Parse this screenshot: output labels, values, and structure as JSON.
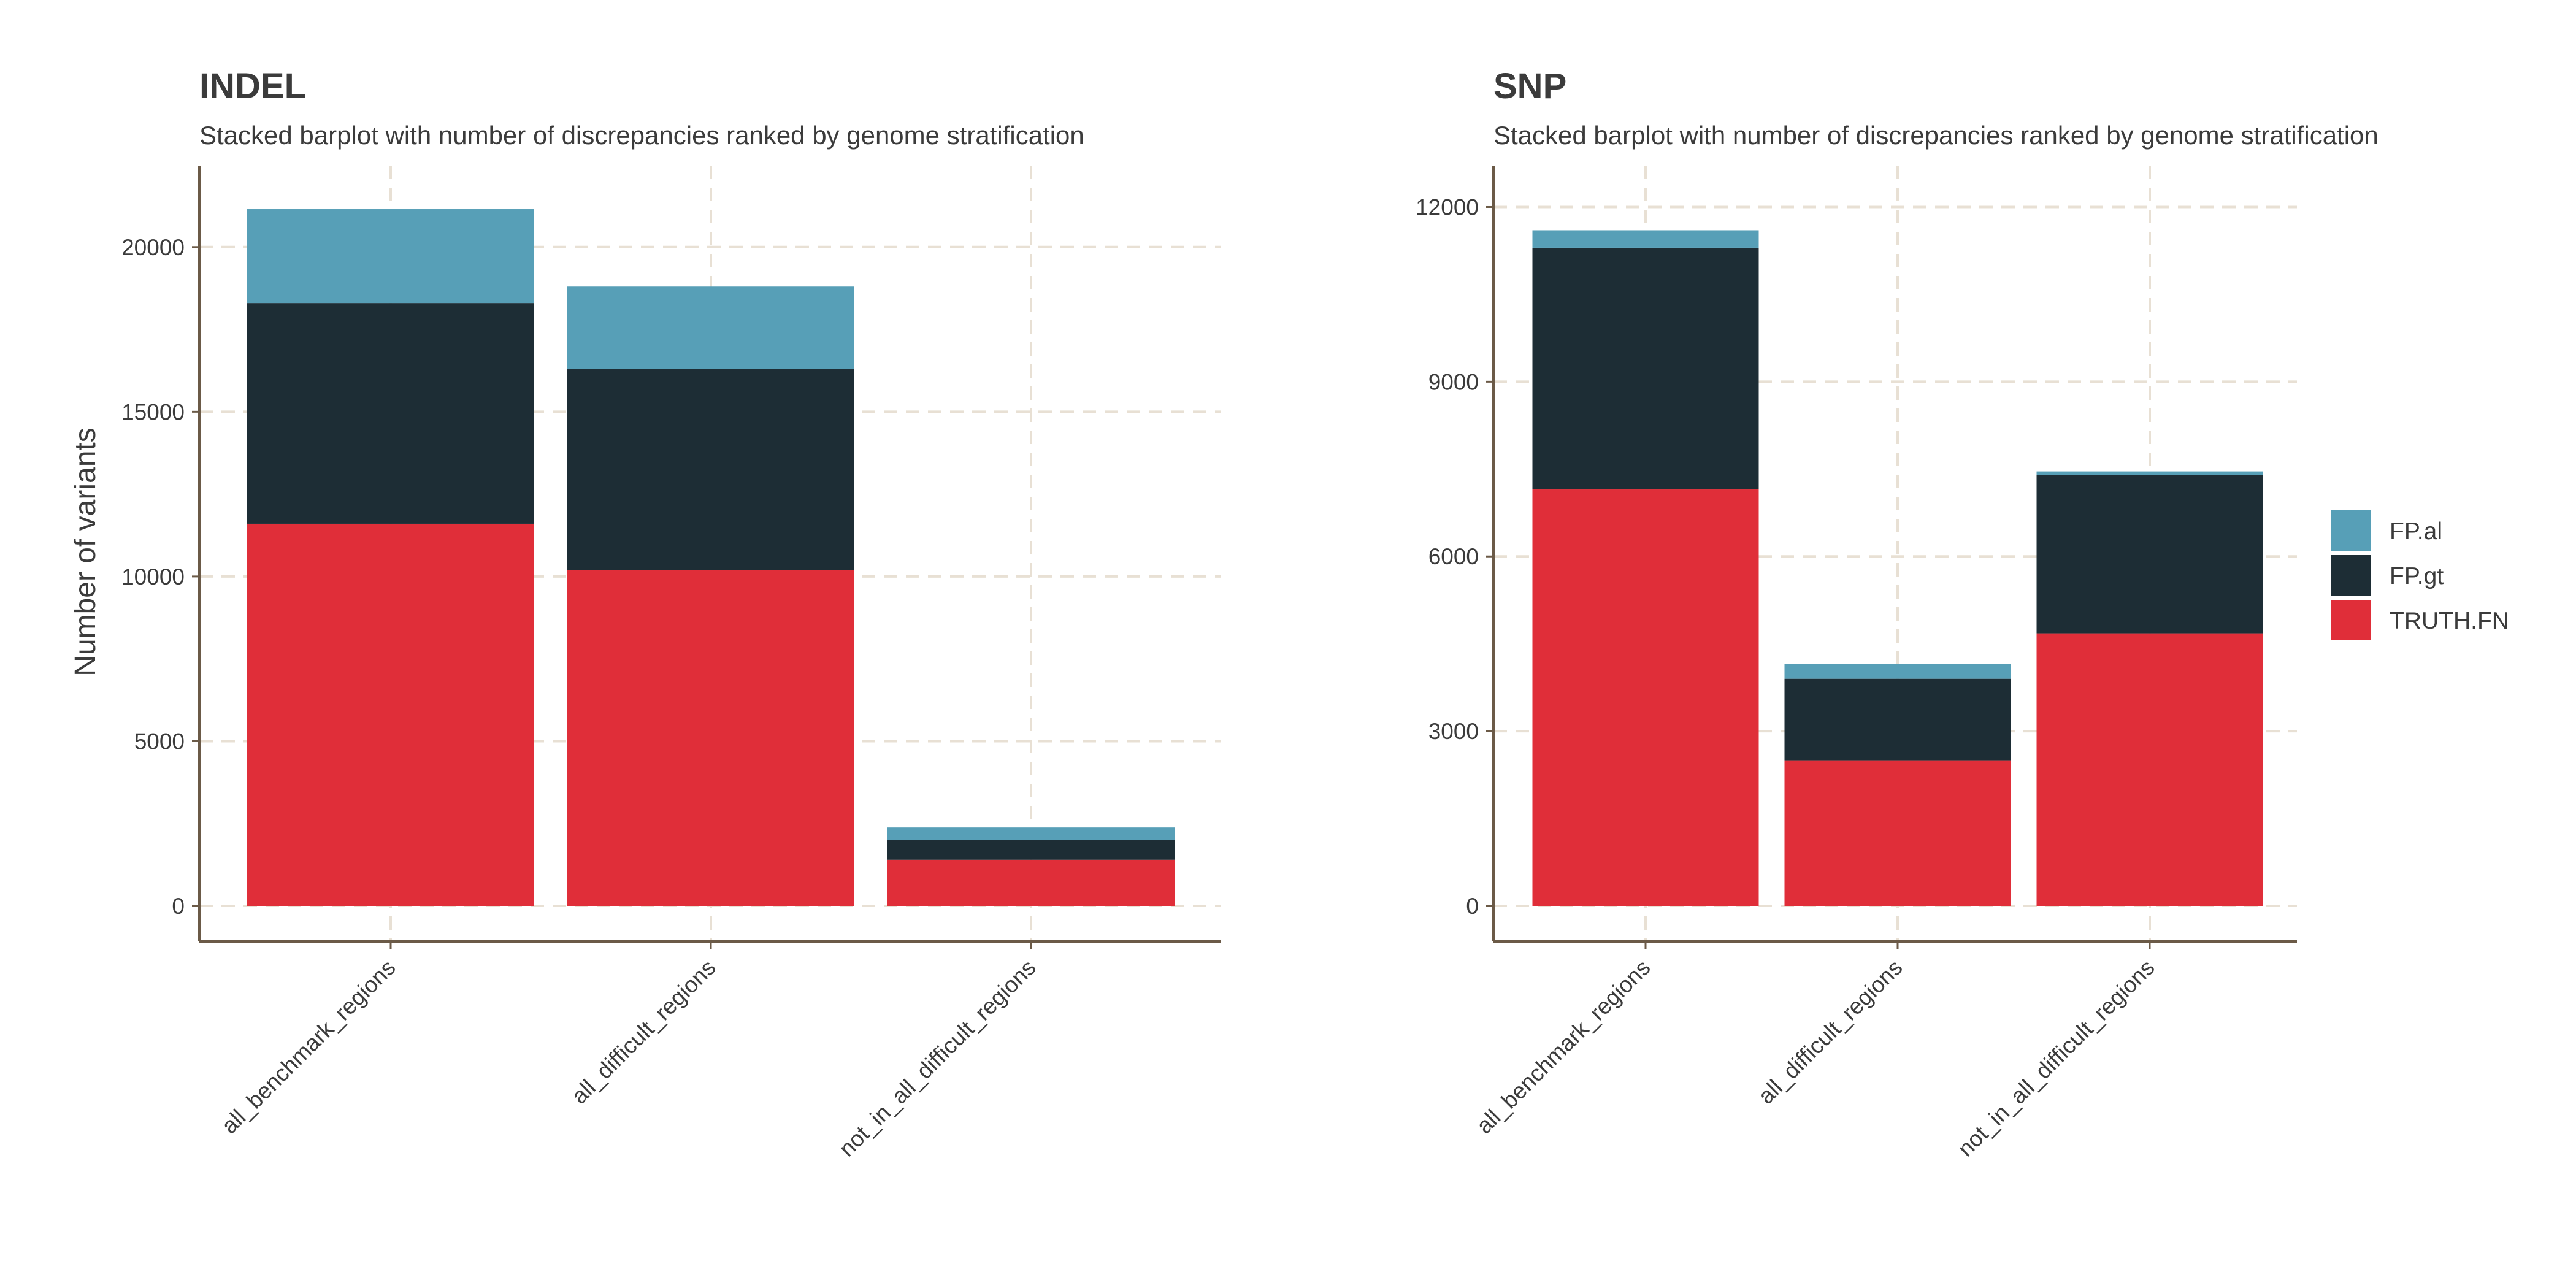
{
  "chart_data": [
    {
      "type": "bar",
      "stacked": true,
      "title": "INDEL",
      "subtitle": "Stacked barplot with number of discrepancies ranked by genome stratification",
      "xlabel": "",
      "ylabel": "Number of variants",
      "ylim": [
        0,
        22100
      ],
      "yticks": [
        0,
        5000,
        10000,
        15000,
        20000
      ],
      "grid": true,
      "categories": [
        "all_benchmark_regions",
        "all_difficult_regions",
        "not_in_all_difficult_regions"
      ],
      "series": [
        {
          "name": "TRUTH.FN",
          "color": "#e02e39",
          "values": [
            11600,
            10200,
            1400
          ]
        },
        {
          "name": "FP.gt",
          "color": "#1d2d35",
          "values": [
            6700,
            6100,
            600
          ]
        },
        {
          "name": "FP.al",
          "color": "#579fb7",
          "values": [
            2850,
            2500,
            380
          ]
        }
      ]
    },
    {
      "type": "bar",
      "stacked": true,
      "title": "SNP",
      "subtitle": "Stacked barplot with number of discrepancies ranked by genome stratification",
      "xlabel": "",
      "ylabel": "",
      "ylim": [
        0,
        12500
      ],
      "yticks": [
        0,
        3000,
        6000,
        9000,
        12000
      ],
      "grid": true,
      "categories": [
        "all_benchmark_regions",
        "all_difficult_regions",
        "not_in_all_difficult_regions"
      ],
      "series": [
        {
          "name": "TRUTH.FN",
          "color": "#e02e39",
          "values": [
            7150,
            2500,
            4680
          ]
        },
        {
          "name": "FP.gt",
          "color": "#1d2d35",
          "values": [
            4150,
            1400,
            2720
          ]
        },
        {
          "name": "FP.al",
          "color": "#579fb7",
          "values": [
            300,
            250,
            60
          ]
        }
      ]
    }
  ],
  "legend": {
    "position": "right",
    "items": [
      {
        "label": "FP.al",
        "color": "#579fb7"
      },
      {
        "label": "FP.gt",
        "color": "#1d2d35"
      },
      {
        "label": "TRUTH.FN",
        "color": "#e02e39"
      }
    ]
  }
}
